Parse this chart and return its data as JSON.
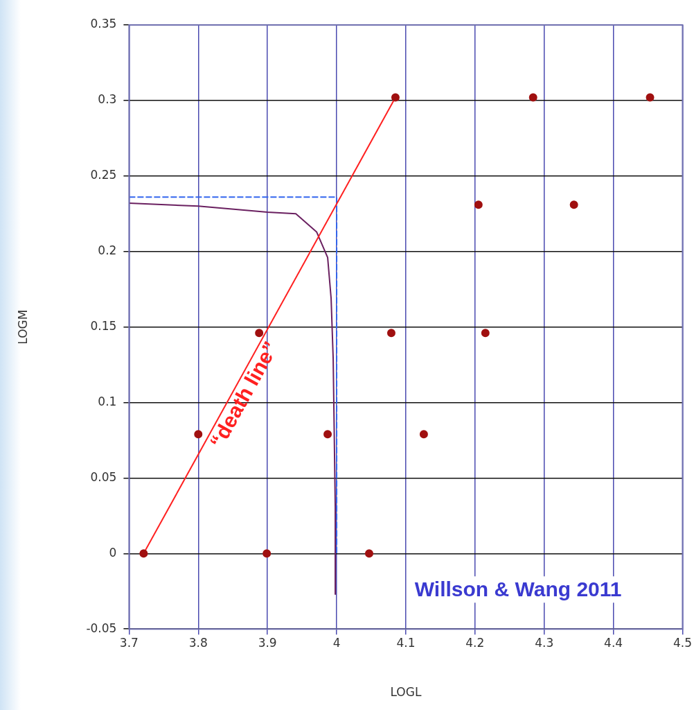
{
  "chart_data": {
    "type": "scatter",
    "xlabel": "LOGL",
    "ylabel": "LOGM",
    "xlim": [
      3.7,
      4.5
    ],
    "xticks": [
      3.7,
      3.8,
      3.9,
      4,
      4.1,
      4.2,
      4.3,
      4.4,
      4.5
    ],
    "ylim": [
      -0.05,
      0.35
    ],
    "yticks": [
      -0.05,
      0,
      0.05,
      0.1,
      0.15,
      0.2,
      0.25,
      0.3,
      0.35
    ],
    "grid": true,
    "legend": false,
    "series": [
      {
        "marker": "circle",
        "color": "#a01010",
        "x": [
          3.721,
          3.8,
          3.888,
          3.899,
          3.987,
          4.047,
          4.079,
          4.085,
          4.126,
          4.205,
          4.215,
          4.284,
          4.343,
          4.453
        ],
        "values": [
          0,
          0.079,
          0.146,
          0,
          0.079,
          0,
          0.146,
          0.302,
          0.079,
          0.231,
          0.146,
          0.302,
          0.231,
          0.302
        ]
      },
      {
        "type": "line",
        "marker": "none",
        "line_style": "solid",
        "color": "#ff2020",
        "x": [
          3.721,
          4.085
        ],
        "values": [
          0,
          0.302
        ]
      },
      {
        "type": "line",
        "marker": "none",
        "line_style": "solid",
        "color": "#6a2060",
        "x": [
          3.7,
          3.8,
          3.9,
          3.941,
          3.971,
          3.987,
          3.992,
          3.995,
          3.998,
          3.998
        ],
        "values": [
          0.232,
          0.23,
          0.226,
          0.225,
          0.213,
          0.196,
          0.169,
          0.129,
          0.031,
          -0.027
        ]
      },
      {
        "type": "line",
        "marker": "none",
        "line_style": "dashed",
        "color": "#3366ee",
        "x": [
          3.7,
          4.0,
          4.0
        ],
        "values": [
          0.236,
          0.236,
          0
        ]
      }
    ],
    "annotations": [
      "“death line”",
      "Willson & Wang 2011"
    ]
  }
}
